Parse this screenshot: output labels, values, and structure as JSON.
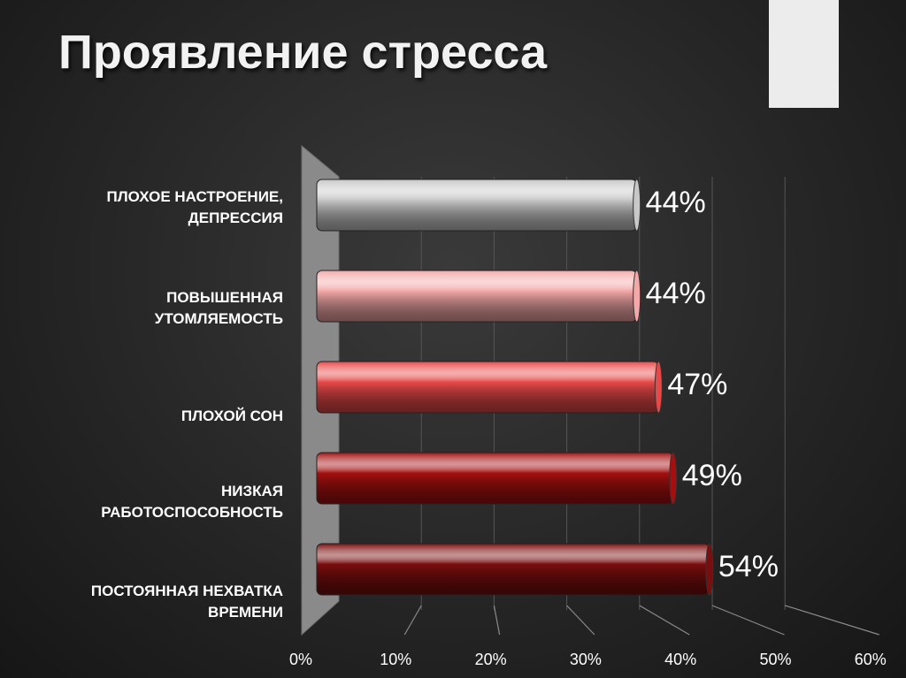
{
  "slide": {
    "title": "Проявление стресса"
  },
  "chart_data": {
    "type": "bar",
    "orientation": "horizontal",
    "title": "",
    "categories": [
      [
        "ПЛОХОЕ НАСТРОЕНИЕ,",
        "ДЕПРЕССИЯ"
      ],
      [
        "ПОВЫШЕННАЯ",
        "УТОМЛЯЕМОСТЬ"
      ],
      [
        "ПЛОХОЙ СОН"
      ],
      [
        "НИЗКАЯ",
        "РАБОТОСПОСОБНОСТЬ"
      ],
      [
        "ПОСТОЯННАЯ НЕХВАТКА",
        "ВРЕМЕНИ"
      ]
    ],
    "values": [
      44,
      44,
      47,
      49,
      54
    ],
    "value_labels": [
      "44%",
      "44%",
      "47%",
      "49%",
      "54%"
    ],
    "xlim": [
      0,
      60
    ],
    "xticks": [
      "0%",
      "10%",
      "20%",
      "30%",
      "40%",
      "50%",
      "60%"
    ],
    "grid": true,
    "colors": [
      "#c8c8c8",
      "#f4a8a8",
      "#e84848",
      "#a50f0f",
      "#7a0d0d"
    ]
  }
}
